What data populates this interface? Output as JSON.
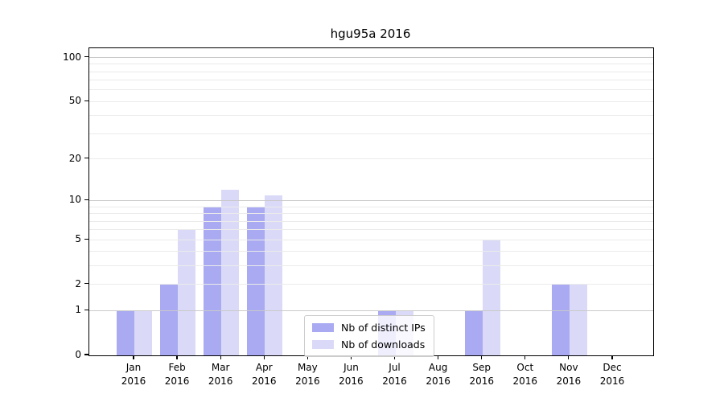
{
  "chart_data": {
    "type": "bar",
    "title": "hgu95a 2016",
    "categories": [
      "Jan 2016",
      "Feb 2016",
      "Mar 2016",
      "Apr 2016",
      "May 2016",
      "Jun 2016",
      "Jul 2016",
      "Aug 2016",
      "Sep 2016",
      "Oct 2016",
      "Nov 2016",
      "Dec 2016"
    ],
    "series": [
      {
        "name": "Nb of distinct IPs",
        "color": "#a9aaf2",
        "values": [
          1,
          2,
          9,
          9,
          0,
          0,
          1,
          0,
          1,
          0,
          2,
          0
        ]
      },
      {
        "name": "Nb of downloads",
        "color": "#dadaf8",
        "values": [
          1,
          6,
          12,
          11,
          0,
          0,
          1,
          0,
          5,
          0,
          2,
          0
        ]
      }
    ],
    "y_ticks": [
      0,
      1,
      2,
      5,
      10,
      20,
      50,
      100
    ],
    "y_gridlines": {
      "major": [
        1,
        10,
        100
      ],
      "minor": [
        2,
        3,
        4,
        5,
        6,
        7,
        8,
        9,
        20,
        30,
        40,
        50,
        60,
        70,
        80,
        90
      ]
    },
    "y_scale": "log1p",
    "ylim": [
      0,
      100
    ],
    "grid": true,
    "legend_position": "lower center inside plot",
    "colors": {
      "major_gridline": "#c9c9c9",
      "minor_gridline": "#ebebeb",
      "axis_frame": "#000000",
      "background": "#ffffff"
    }
  }
}
